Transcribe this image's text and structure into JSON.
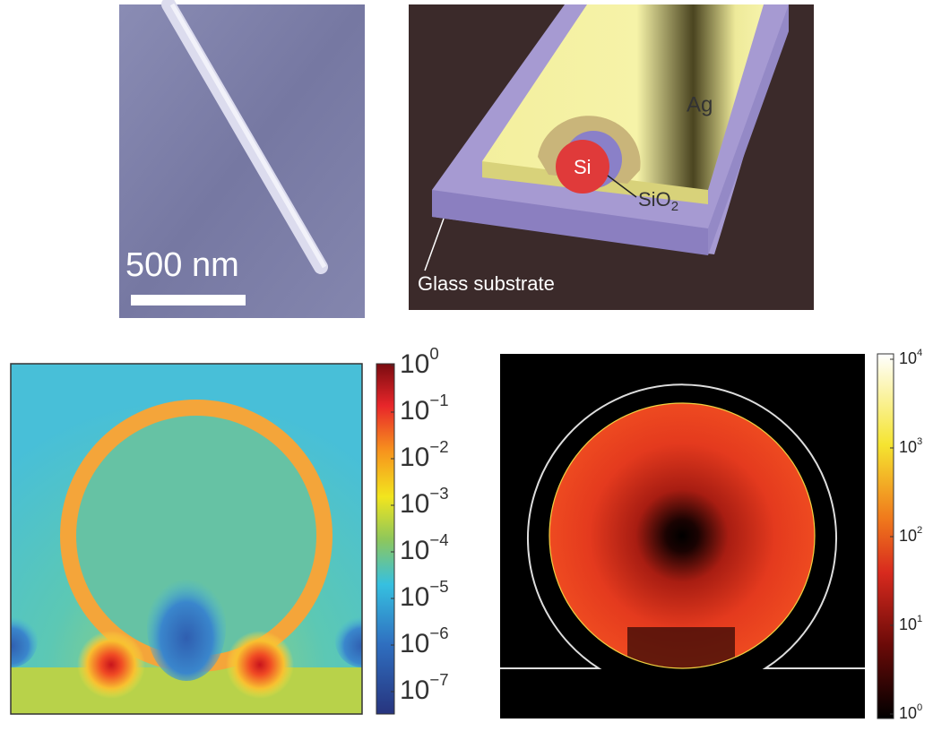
{
  "panels": {
    "sem": {
      "scale_label": "500 nm"
    },
    "schematic": {
      "ag": "Ag",
      "si": "Si",
      "sio2": {
        "text": "SiO",
        "sub": "2"
      },
      "glass": "Glass substrate"
    },
    "field_left": {
      "colorbar_ticks": [
        {
          "base": "10",
          "exp": "0"
        },
        {
          "base": "10",
          "exp": "−1"
        },
        {
          "base": "10",
          "exp": "−2"
        },
        {
          "base": "10",
          "exp": "−3"
        },
        {
          "base": "10",
          "exp": "−4"
        },
        {
          "base": "10",
          "exp": "−5"
        },
        {
          "base": "10",
          "exp": "−6"
        },
        {
          "base": "10",
          "exp": "−7"
        }
      ]
    },
    "field_right": {
      "colorbar_ticks": [
        {
          "base": "10",
          "exp": "4"
        },
        {
          "base": "10",
          "exp": "3"
        },
        {
          "base": "10",
          "exp": "2"
        },
        {
          "base": "10",
          "exp": "1"
        },
        {
          "base": "10",
          "exp": "0"
        }
      ]
    }
  }
}
